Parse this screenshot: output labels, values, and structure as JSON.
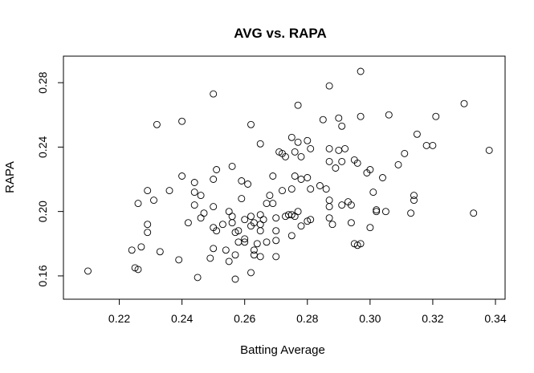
{
  "chart_data": {
    "type": "scatter",
    "title": "AVG vs. RAPA",
    "xlabel": "Batting Average",
    "ylabel": "RAPA",
    "xlim": [
      0.205,
      0.34
    ],
    "ylim": [
      0.152,
      0.29
    ],
    "xticks": [
      0.22,
      0.24,
      0.26,
      0.28,
      0.3,
      0.32,
      0.34
    ],
    "yticks": [
      0.16,
      0.2,
      0.24,
      0.28
    ],
    "xtick_labels": [
      "0.22",
      "0.24",
      "0.26",
      "0.28",
      "0.30",
      "0.32",
      "0.34"
    ],
    "ytick_labels": [
      "0.16",
      "0.20",
      "0.24",
      "0.28"
    ],
    "grid": false,
    "legend": "none",
    "points": [
      [
        0.21,
        0.163
      ],
      [
        0.224,
        0.176
      ],
      [
        0.225,
        0.165
      ],
      [
        0.226,
        0.164
      ],
      [
        0.226,
        0.205
      ],
      [
        0.227,
        0.178
      ],
      [
        0.229,
        0.192
      ],
      [
        0.229,
        0.187
      ],
      [
        0.229,
        0.213
      ],
      [
        0.231,
        0.207
      ],
      [
        0.232,
        0.254
      ],
      [
        0.233,
        0.175
      ],
      [
        0.236,
        0.213
      ],
      [
        0.239,
        0.17
      ],
      [
        0.24,
        0.256
      ],
      [
        0.24,
        0.222
      ],
      [
        0.242,
        0.193
      ],
      [
        0.244,
        0.218
      ],
      [
        0.244,
        0.212
      ],
      [
        0.244,
        0.204
      ],
      [
        0.245,
        0.159
      ],
      [
        0.246,
        0.21
      ],
      [
        0.246,
        0.196
      ],
      [
        0.247,
        0.199
      ],
      [
        0.249,
        0.171
      ],
      [
        0.25,
        0.273
      ],
      [
        0.25,
        0.22
      ],
      [
        0.25,
        0.203
      ],
      [
        0.25,
        0.19
      ],
      [
        0.25,
        0.177
      ],
      [
        0.251,
        0.226
      ],
      [
        0.251,
        0.188
      ],
      [
        0.253,
        0.192
      ],
      [
        0.254,
        0.176
      ],
      [
        0.255,
        0.2
      ],
      [
        0.255,
        0.169
      ],
      [
        0.256,
        0.228
      ],
      [
        0.256,
        0.197
      ],
      [
        0.256,
        0.193
      ],
      [
        0.257,
        0.187
      ],
      [
        0.257,
        0.173
      ],
      [
        0.257,
        0.158
      ],
      [
        0.258,
        0.181
      ],
      [
        0.258,
        0.188
      ],
      [
        0.259,
        0.208
      ],
      [
        0.259,
        0.219
      ],
      [
        0.26,
        0.195
      ],
      [
        0.26,
        0.183
      ],
      [
        0.26,
        0.181
      ],
      [
        0.261,
        0.217
      ],
      [
        0.262,
        0.254
      ],
      [
        0.262,
        0.197
      ],
      [
        0.262,
        0.191
      ],
      [
        0.262,
        0.162
      ],
      [
        0.263,
        0.176
      ],
      [
        0.263,
        0.173
      ],
      [
        0.263,
        0.193
      ],
      [
        0.264,
        0.18
      ],
      [
        0.265,
        0.242
      ],
      [
        0.265,
        0.198
      ],
      [
        0.265,
        0.192
      ],
      [
        0.265,
        0.188
      ],
      [
        0.265,
        0.172
      ],
      [
        0.266,
        0.195
      ],
      [
        0.267,
        0.205
      ],
      [
        0.267,
        0.181
      ],
      [
        0.268,
        0.21
      ],
      [
        0.269,
        0.222
      ],
      [
        0.269,
        0.205
      ],
      [
        0.27,
        0.196
      ],
      [
        0.27,
        0.188
      ],
      [
        0.27,
        0.182
      ],
      [
        0.27,
        0.172
      ],
      [
        0.271,
        0.237
      ],
      [
        0.272,
        0.236
      ],
      [
        0.272,
        0.213
      ],
      [
        0.273,
        0.234
      ],
      [
        0.273,
        0.197
      ],
      [
        0.274,
        0.198
      ],
      [
        0.275,
        0.246
      ],
      [
        0.275,
        0.214
      ],
      [
        0.275,
        0.198
      ],
      [
        0.275,
        0.185
      ],
      [
        0.276,
        0.237
      ],
      [
        0.276,
        0.222
      ],
      [
        0.276,
        0.197
      ],
      [
        0.277,
        0.266
      ],
      [
        0.277,
        0.243
      ],
      [
        0.277,
        0.2
      ],
      [
        0.278,
        0.22
      ],
      [
        0.278,
        0.191
      ],
      [
        0.278,
        0.234
      ],
      [
        0.28,
        0.244
      ],
      [
        0.28,
        0.221
      ],
      [
        0.28,
        0.194
      ],
      [
        0.281,
        0.239
      ],
      [
        0.281,
        0.214
      ],
      [
        0.281,
        0.195
      ],
      [
        0.284,
        0.216
      ],
      [
        0.285,
        0.257
      ],
      [
        0.286,
        0.214
      ],
      [
        0.287,
        0.278
      ],
      [
        0.287,
        0.239
      ],
      [
        0.287,
        0.231
      ],
      [
        0.287,
        0.207
      ],
      [
        0.287,
        0.203
      ],
      [
        0.287,
        0.196
      ],
      [
        0.288,
        0.192
      ],
      [
        0.289,
        0.227
      ],
      [
        0.29,
        0.258
      ],
      [
        0.29,
        0.238
      ],
      [
        0.291,
        0.253
      ],
      [
        0.291,
        0.231
      ],
      [
        0.291,
        0.204
      ],
      [
        0.292,
        0.239
      ],
      [
        0.293,
        0.206
      ],
      [
        0.294,
        0.204
      ],
      [
        0.294,
        0.193
      ],
      [
        0.295,
        0.232
      ],
      [
        0.295,
        0.18
      ],
      [
        0.296,
        0.23
      ],
      [
        0.296,
        0.179
      ],
      [
        0.297,
        0.287
      ],
      [
        0.297,
        0.259
      ],
      [
        0.297,
        0.18
      ],
      [
        0.299,
        0.224
      ],
      [
        0.3,
        0.226
      ],
      [
        0.3,
        0.19
      ],
      [
        0.301,
        0.212
      ],
      [
        0.302,
        0.201
      ],
      [
        0.302,
        0.2
      ],
      [
        0.304,
        0.221
      ],
      [
        0.305,
        0.2
      ],
      [
        0.306,
        0.26
      ],
      [
        0.309,
        0.229
      ],
      [
        0.311,
        0.236
      ],
      [
        0.313,
        0.199
      ],
      [
        0.314,
        0.21
      ],
      [
        0.314,
        0.207
      ],
      [
        0.315,
        0.248
      ],
      [
        0.318,
        0.241
      ],
      [
        0.32,
        0.241
      ],
      [
        0.321,
        0.259
      ],
      [
        0.33,
        0.267
      ],
      [
        0.333,
        0.199
      ],
      [
        0.338,
        0.238
      ]
    ]
  }
}
